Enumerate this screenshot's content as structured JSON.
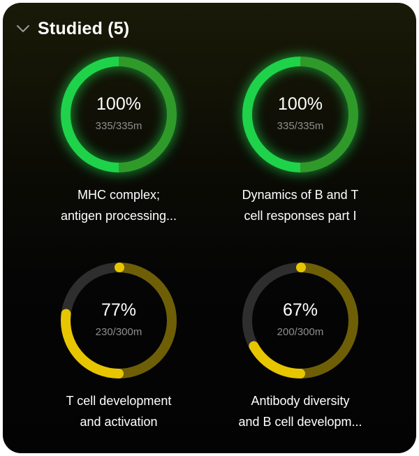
{
  "header": {
    "title": "Studied (5)"
  },
  "colors": {
    "green": "#1ed34a",
    "green_dark": "#2f9a2a",
    "yellow": "#e7c600",
    "yellow_dark": "#6e5e06"
  },
  "items": [
    {
      "percent": "100%",
      "minutes": "335/335m",
      "title_line1": "MHC complex;",
      "title_line2": "antigen processing...",
      "fraction": 1.0,
      "color": "green"
    },
    {
      "percent": "100%",
      "minutes": "335/335m",
      "title_line1": "Dynamics of B and T",
      "title_line2": "cell responses part I",
      "fraction": 1.0,
      "color": "green"
    },
    {
      "percent": "77%",
      "minutes": "230/300m",
      "title_line1": "T cell development",
      "title_line2": "and activation",
      "fraction": 0.77,
      "color": "yellow"
    },
    {
      "percent": "67%",
      "minutes": "200/300m",
      "title_line1": "Antibody diversity",
      "title_line2": "and B cell developm...",
      "fraction": 0.67,
      "color": "yellow"
    }
  ]
}
